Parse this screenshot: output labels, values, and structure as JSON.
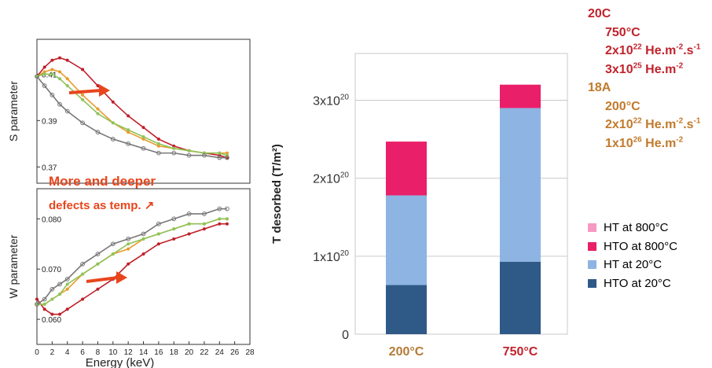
{
  "chart_data": [
    {
      "type": "line",
      "ylabel": "S parameter",
      "ylim": [
        0.363,
        0.425
      ],
      "yticks": [
        "0.41",
        "0.39",
        "0.37"
      ],
      "ytick_values": [
        0.41,
        0.39,
        0.37
      ],
      "xlim": [
        0,
        28
      ],
      "series": [
        {
          "color": "#c0202a",
          "x": [
            0,
            1,
            2,
            3,
            4,
            6,
            8,
            10,
            12,
            14,
            16,
            18,
            20,
            22,
            24,
            25
          ],
          "y": [
            0.409,
            0.413,
            0.416,
            0.417,
            0.416,
            0.412,
            0.405,
            0.398,
            0.392,
            0.387,
            0.382,
            0.379,
            0.377,
            0.376,
            0.375,
            0.374
          ]
        },
        {
          "color": "#e89b2c",
          "x": [
            0,
            1,
            2,
            3,
            4,
            6,
            8,
            10,
            12,
            14,
            16,
            18,
            20,
            22,
            24,
            25
          ],
          "y": [
            0.409,
            0.411,
            0.412,
            0.411,
            0.408,
            0.401,
            0.395,
            0.389,
            0.385,
            0.382,
            0.379,
            0.378,
            0.377,
            0.376,
            0.376,
            0.376
          ]
        },
        {
          "color": "#8fc45a",
          "x": [
            0,
            1,
            2,
            3,
            4,
            6,
            8,
            10,
            12,
            14,
            16,
            18,
            20,
            22,
            24,
            25
          ],
          "y": [
            0.409,
            0.41,
            0.41,
            0.408,
            0.405,
            0.399,
            0.393,
            0.389,
            0.386,
            0.383,
            0.38,
            0.378,
            0.377,
            0.376,
            0.376,
            0.375
          ]
        },
        {
          "color": "#777777",
          "x": [
            0,
            1,
            2,
            3,
            4,
            6,
            8,
            10,
            12,
            14,
            16,
            18,
            20,
            22,
            24,
            25
          ],
          "y": [
            0.409,
            0.405,
            0.401,
            0.397,
            0.394,
            0.389,
            0.385,
            0.382,
            0.38,
            0.378,
            0.376,
            0.376,
            0.375,
            0.375,
            0.374,
            0.374
          ]
        }
      ]
    },
    {
      "type": "line",
      "ylabel": "W parameter",
      "xlabel": "Energy (keV)",
      "ylim": [
        0.055,
        0.086
      ],
      "yticks": [
        "0.080",
        "0.070",
        "0.060"
      ],
      "ytick_values": [
        0.08,
        0.07,
        0.06
      ],
      "xlim": [
        0,
        28
      ],
      "xticks": [
        "0",
        "2",
        "4",
        "6",
        "8",
        "10",
        "12",
        "14",
        "16",
        "18",
        "20",
        "22",
        "24",
        "26",
        "28"
      ],
      "series": [
        {
          "color": "#c0202a",
          "x": [
            0,
            1,
            2,
            3,
            4,
            6,
            8,
            10,
            12,
            14,
            16,
            18,
            20,
            22,
            24,
            25
          ],
          "y": [
            0.064,
            0.062,
            0.061,
            0.061,
            0.062,
            0.064,
            0.066,
            0.068,
            0.071,
            0.073,
            0.075,
            0.076,
            0.077,
            0.078,
            0.079,
            0.079
          ]
        },
        {
          "color": "#e89b2c",
          "x": [
            0,
            1,
            2,
            3,
            4,
            6,
            8,
            10,
            12,
            14,
            16,
            18,
            20,
            22,
            24,
            25
          ],
          "y": [
            0.063,
            0.063,
            0.064,
            0.065,
            0.066,
            0.069,
            0.071,
            0.073,
            0.074,
            0.076,
            0.077,
            0.078,
            0.079,
            0.079,
            0.08,
            0.08
          ]
        },
        {
          "color": "#8fc45a",
          "x": [
            0,
            1,
            2,
            3,
            4,
            6,
            8,
            10,
            12,
            14,
            16,
            18,
            20,
            22,
            24,
            25
          ],
          "y": [
            0.063,
            0.063,
            0.064,
            0.065,
            0.067,
            0.069,
            0.071,
            0.073,
            0.075,
            0.076,
            0.077,
            0.078,
            0.079,
            0.079,
            0.08,
            0.08
          ]
        },
        {
          "color": "#777777",
          "x": [
            0,
            1,
            2,
            3,
            4,
            6,
            8,
            10,
            12,
            14,
            16,
            18,
            20,
            22,
            24,
            25
          ],
          "y": [
            0.063,
            0.064,
            0.066,
            0.067,
            0.068,
            0.071,
            0.073,
            0.075,
            0.076,
            0.077,
            0.079,
            0.08,
            0.081,
            0.081,
            0.082,
            0.082
          ]
        }
      ]
    },
    {
      "type": "bar",
      "stacked": true,
      "categories": [
        "200°C",
        "750°C"
      ],
      "category_colors": [
        "#b57a35",
        "#c0232d"
      ],
      "ylabel": "T desorbed (T/m²)",
      "ylim": [
        0,
        3.6e+20
      ],
      "yticks": [
        {
          "value": 0,
          "base": "0",
          "exp": ""
        },
        {
          "value": 1e+20,
          "base": "1x10",
          "exp": "20"
        },
        {
          "value": 2e+20,
          "base": "2x10",
          "exp": "20"
        },
        {
          "value": 3e+20,
          "base": "3x10",
          "exp": "20"
        }
      ],
      "grid": true,
      "legend_position": "right",
      "series": [
        {
          "name": "HTO at 20°C",
          "color": "#2f5987",
          "values": [
            6.3e+19,
            9.3e+19
          ]
        },
        {
          "name": "HT at 20°C",
          "color": "#8eb4e3",
          "values": [
            1.15e+20,
            1.97e+20
          ]
        },
        {
          "name": "HTO at 800°C",
          "color": "#ea1f69",
          "values": [
            6.9e+19,
            3e+19
          ]
        },
        {
          "name": "HT at 800°C",
          "color": "#f59ac2",
          "values": [
            0,
            0
          ]
        }
      ]
    }
  ],
  "annotations": {
    "line1": "More and deeper",
    "line2": "defects as temp. ↗"
  },
  "info": {
    "g1": {
      "title": "20C",
      "temp": "750°C",
      "flux_a": "2x10",
      "flux_exp": "22",
      "flux_b": " He.m",
      "flux_exp2": "-2",
      "flux_c": ".s",
      "flux_exp3": "-1",
      "fluence_a": "3x10",
      "fluence_exp": "25",
      "fluence_b": " He.m",
      "fluence_exp2": "-2"
    },
    "g2": {
      "title": "18A",
      "temp": "200°C",
      "flux_a": "2x10",
      "flux_exp": "22",
      "flux_b": " He.m",
      "flux_exp2": "-2",
      "flux_c": ".s",
      "flux_exp3": "-1",
      "fluence_a": "1x10",
      "fluence_exp": "26",
      "fluence_b": " He.m",
      "fluence_exp2": "-2"
    }
  }
}
